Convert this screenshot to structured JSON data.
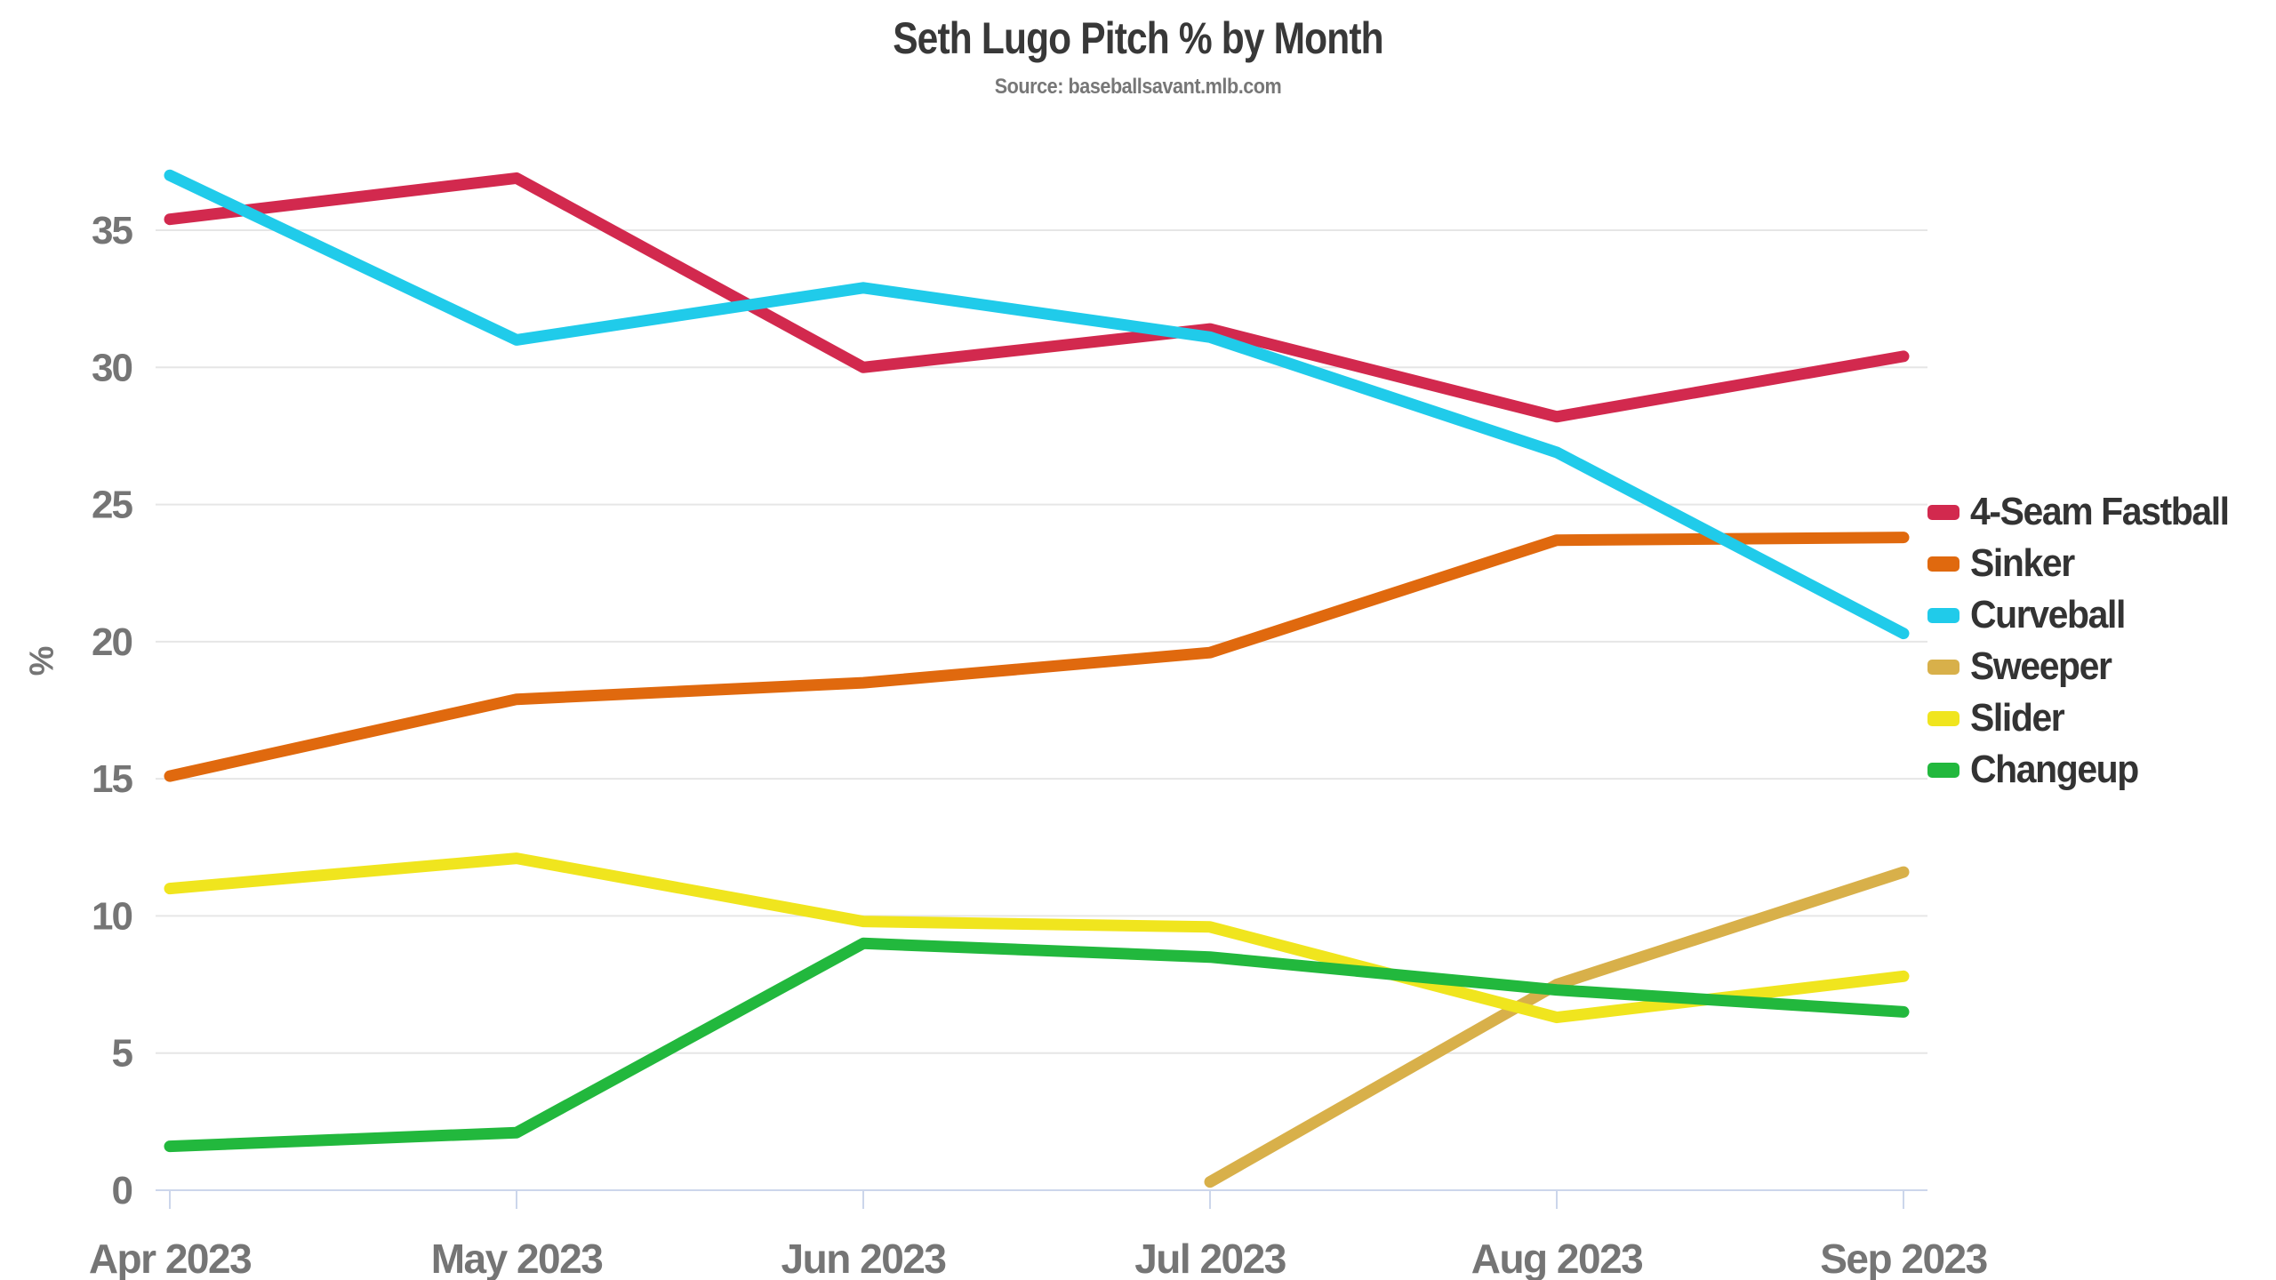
{
  "header": {
    "title": "Seth Lugo Pitch % by Month",
    "subtitle": "Source: baseballsavant.mlb.com"
  },
  "colors": {
    "title_text": "#383838",
    "subtitle_text": "#777777",
    "axis_label_text": "#757575",
    "legend_text": "#333333",
    "gridline": "#e6e6e6",
    "axis_line": "#ccd6eb"
  },
  "chart_data": {
    "type": "line",
    "title": "Seth Lugo Pitch % by Month",
    "subtitle": "Source: baseballsavant.mlb.com",
    "xlabel": "",
    "ylabel": "%",
    "categories": [
      "Apr 2023",
      "May 2023",
      "Jun 2023",
      "Jul 2023",
      "Aug 2023",
      "Sep 2023"
    ],
    "yticks": [
      0,
      5,
      10,
      15,
      20,
      25,
      30,
      35
    ],
    "ylim": [
      0,
      37.5
    ],
    "grid": true,
    "legend_position": "right",
    "series": [
      {
        "name": "4-Seam Fastball",
        "color": "#d2294e",
        "values": [
          35.4,
          36.9,
          30.0,
          31.4,
          28.2,
          30.4
        ]
      },
      {
        "name": "Sinker",
        "color": "#e0690e",
        "values": [
          15.1,
          17.9,
          18.5,
          19.6,
          23.7,
          23.8
        ]
      },
      {
        "name": "Curveball",
        "color": "#20cbea",
        "values": [
          37.0,
          31.0,
          32.9,
          31.1,
          26.9,
          20.3
        ]
      },
      {
        "name": "Sweeper",
        "color": "#d8b04a",
        "values": [
          null,
          null,
          null,
          0.3,
          7.5,
          11.6
        ]
      },
      {
        "name": "Slider",
        "color": "#f0e51e",
        "values": [
          11.0,
          12.1,
          9.8,
          9.6,
          6.3,
          7.8
        ]
      },
      {
        "name": "Changeup",
        "color": "#22b83d",
        "values": [
          1.6,
          2.1,
          9.0,
          8.5,
          7.3,
          6.5
        ]
      }
    ]
  }
}
